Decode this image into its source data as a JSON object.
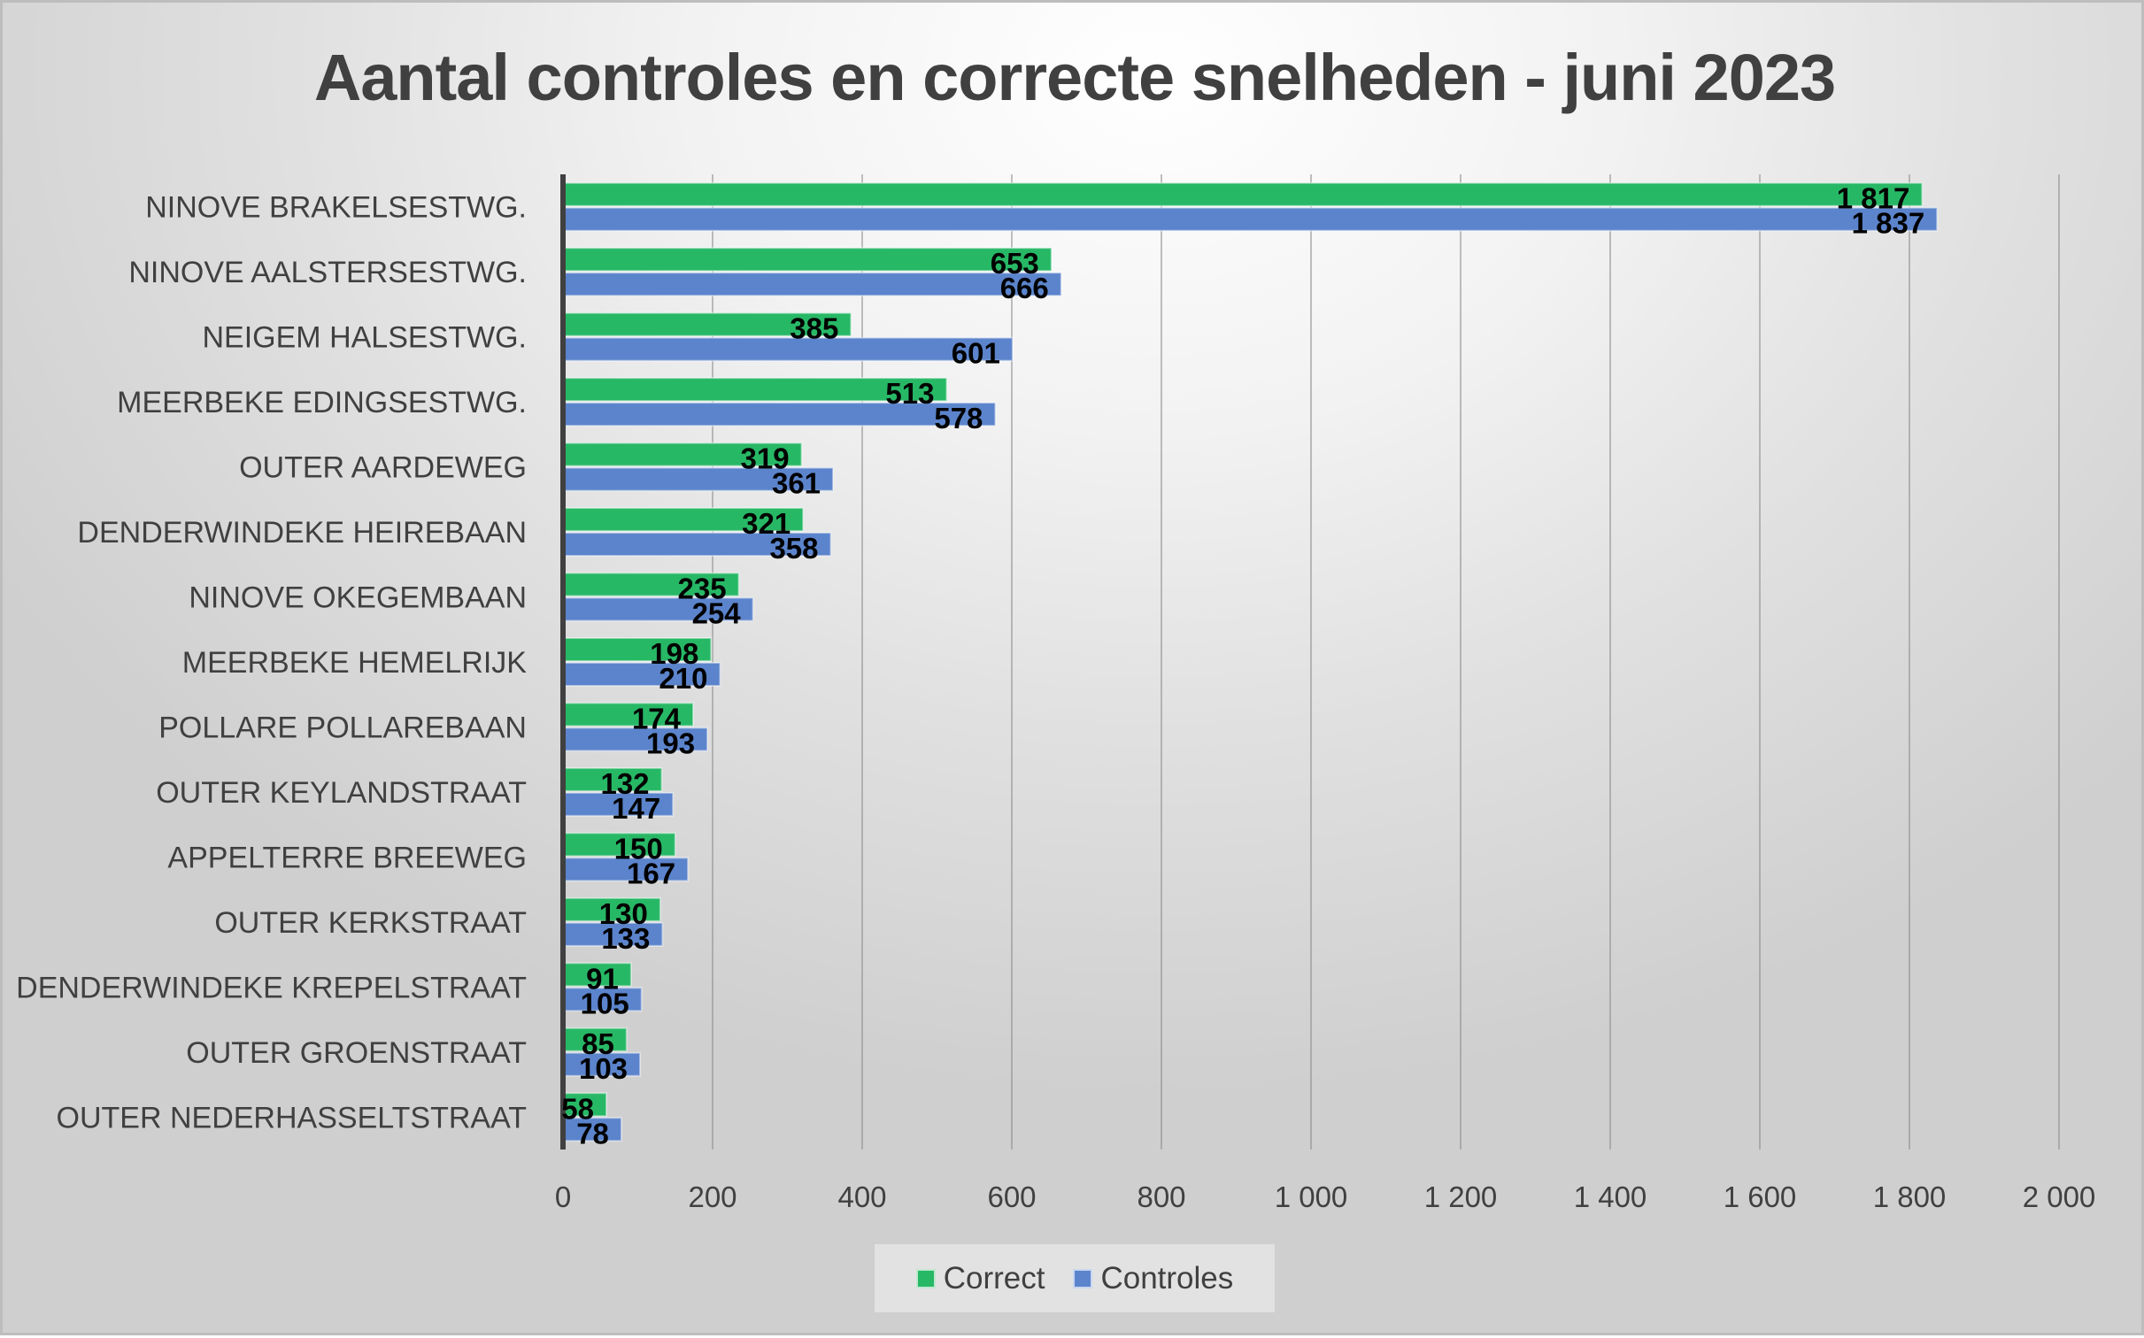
{
  "chart_data": {
    "type": "bar",
    "orientation": "horizontal",
    "title": "Aantal controles en correcte snelheden - juni 2023",
    "xlabel": "",
    "ylabel": "",
    "xlim": [
      0,
      2000
    ],
    "x_ticks": [
      0,
      200,
      400,
      600,
      800,
      1000,
      1200,
      1400,
      1600,
      1800,
      2000
    ],
    "x_tick_labels": [
      "0",
      "200",
      "400",
      "600",
      "800",
      "1 000",
      "1 200",
      "1 400",
      "1 600",
      "1 800",
      "2 000"
    ],
    "grid": "vertical major gridlines",
    "legend_position": "bottom",
    "categories": [
      "NINOVE BRAKELSESTWG.",
      "NINOVE AALSTERSESTWG.",
      "NEIGEM HALSESTWG.",
      "MEERBEKE EDINGSESTWG.",
      "OUTER AARDEWEG",
      "DENDERWINDEKE  HEIREBAAN",
      "NINOVE OKEGEMBAAN",
      "MEERBEKE HEMELRIJK",
      "POLLARE POLLAREBAAN",
      "OUTER KEYLANDSTRAAT",
      "APPELTERRE BREEWEG",
      "OUTER KERKSTRAAT",
      "DENDERWINDEKE  KREPELSTRAAT",
      "OUTER GROENSTRAAT",
      "OUTER NEDERHASSELTSTRAAT"
    ],
    "series": [
      {
        "name": "Correct",
        "color": "#27b866",
        "values": [
          1817,
          653,
          385,
          513,
          319,
          321,
          235,
          198,
          174,
          132,
          150,
          130,
          91,
          85,
          58
        ],
        "labels": [
          "1 817",
          "653",
          "385",
          "513",
          "319",
          "321",
          "235",
          "198",
          "174",
          "132",
          "150",
          "130",
          "91",
          "85",
          "58"
        ]
      },
      {
        "name": "Controles",
        "color": "#5b84cc",
        "values": [
          1837,
          666,
          601,
          578,
          361,
          358,
          254,
          210,
          193,
          147,
          167,
          133,
          105,
          103,
          78
        ],
        "labels": [
          "1 837",
          "666",
          "601",
          "578",
          "361",
          "358",
          "254",
          "210",
          "193",
          "147",
          "167",
          "133",
          "105",
          "103",
          "78"
        ]
      }
    ]
  }
}
